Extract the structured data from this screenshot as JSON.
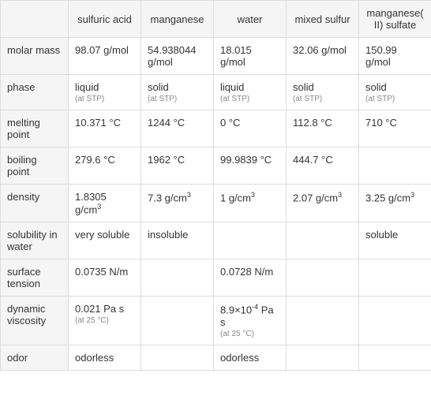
{
  "columns": [
    "",
    "sulfuric acid",
    "manganese",
    "water",
    "mixed sulfur",
    "manganese(II) sulfate"
  ],
  "rows": [
    {
      "header": "molar mass",
      "cells": [
        {
          "value": "98.07 g/mol"
        },
        {
          "value": "54.938044 g/mol"
        },
        {
          "value": "18.015 g/mol"
        },
        {
          "value": "32.06 g/mol"
        },
        {
          "value": "150.99 g/mol"
        }
      ]
    },
    {
      "header": "phase",
      "cells": [
        {
          "value": "liquid",
          "sub": "(at STP)"
        },
        {
          "value": "solid",
          "sub": "(at STP)"
        },
        {
          "value": "liquid",
          "sub": "(at STP)"
        },
        {
          "value": "solid",
          "sub": "(at STP)"
        },
        {
          "value": "solid",
          "sub": "(at STP)"
        }
      ]
    },
    {
      "header": "melting point",
      "cells": [
        {
          "value": "10.371 °C"
        },
        {
          "value": "1244 °C"
        },
        {
          "value": "0 °C"
        },
        {
          "value": "112.8 °C"
        },
        {
          "value": "710 °C"
        }
      ]
    },
    {
      "header": "boiling point",
      "cells": [
        {
          "value": "279.6 °C"
        },
        {
          "value": "1962 °C"
        },
        {
          "value": "99.9839 °C"
        },
        {
          "value": "444.7 °C"
        },
        {
          "value": ""
        }
      ]
    },
    {
      "header": "density",
      "cells": [
        {
          "value": "1.8305 g/cm",
          "sup": "3"
        },
        {
          "value": "7.3 g/cm",
          "sup": "3"
        },
        {
          "value": "1 g/cm",
          "sup": "3"
        },
        {
          "value": "2.07 g/cm",
          "sup": "3"
        },
        {
          "value": "3.25 g/cm",
          "sup": "3"
        }
      ]
    },
    {
      "header": "solubility in water",
      "cells": [
        {
          "value": "very soluble"
        },
        {
          "value": "insoluble"
        },
        {
          "value": ""
        },
        {
          "value": ""
        },
        {
          "value": "soluble"
        }
      ]
    },
    {
      "header": "surface tension",
      "cells": [
        {
          "value": "0.0735 N/m"
        },
        {
          "value": ""
        },
        {
          "value": "0.0728 N/m"
        },
        {
          "value": ""
        },
        {
          "value": ""
        }
      ]
    },
    {
      "header": "dynamic viscosity",
      "cells": [
        {
          "value": "0.021 Pa s",
          "sub": "(at 25 °C)"
        },
        {
          "value": ""
        },
        {
          "value": "8.9×10",
          "sup": "-4",
          "suffix": " Pa s",
          "sub": "(at 25 °C)"
        },
        {
          "value": ""
        },
        {
          "value": ""
        }
      ]
    },
    {
      "header": "odor",
      "cells": [
        {
          "value": "odorless"
        },
        {
          "value": ""
        },
        {
          "value": "odorless"
        },
        {
          "value": ""
        },
        {
          "value": ""
        }
      ]
    }
  ],
  "styles": {
    "border_color": "#dddddd",
    "header_bg": "#f5f5f5",
    "text_color": "#333333",
    "sub_color": "#888888",
    "font_size": 13,
    "sub_font_size": 10
  }
}
